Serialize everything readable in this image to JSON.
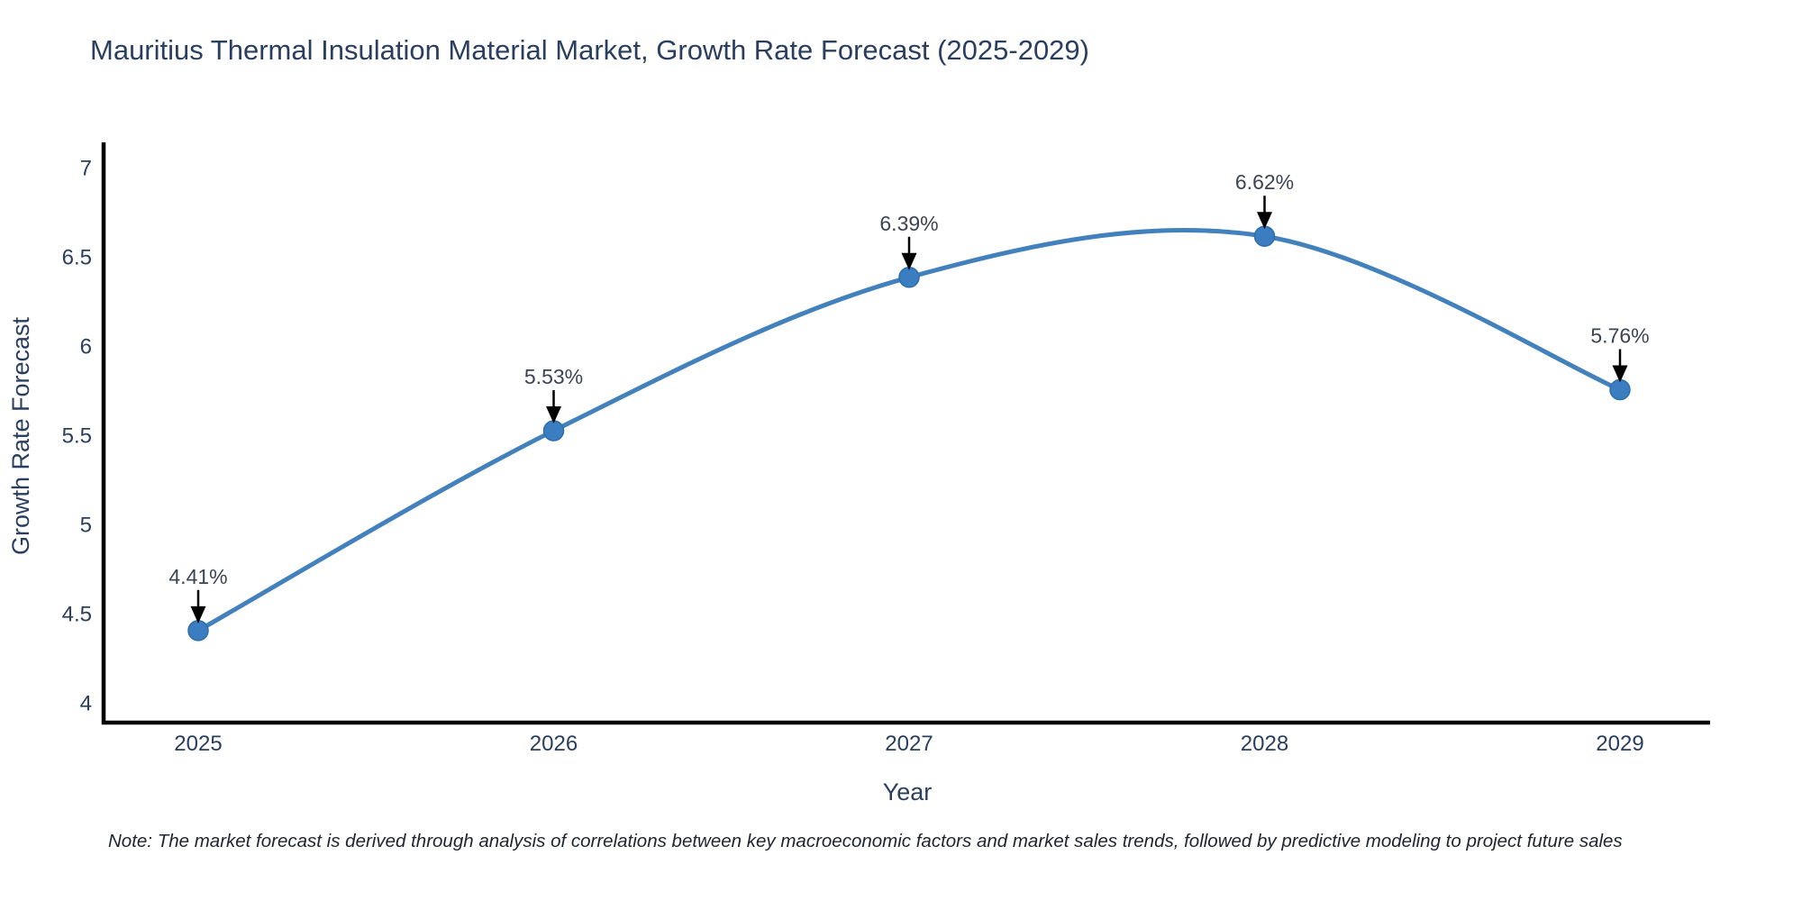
{
  "title": "Mauritius Thermal Insulation Material Market, Growth Rate Forecast (2025-2029)",
  "note": "Note: The market forecast is derived through analysis of correlations between key macroeconomic factors and market sales trends, followed by predictive modeling to project future sales",
  "chart_data": {
    "type": "line",
    "line_shape": "spline",
    "title": "Mauritius Thermal Insulation Material Market, Growth Rate Forecast (2025-2029)",
    "xlabel": "Year",
    "ylabel": "Growth Rate Forecast",
    "categories": [
      "2025",
      "2026",
      "2027",
      "2028",
      "2029"
    ],
    "series": [
      {
        "name": "Growth Rate Forecast",
        "values": [
          4.41,
          5.53,
          6.39,
          6.62,
          5.76
        ]
      }
    ],
    "point_labels": [
      "4.41%",
      "5.53%",
      "6.39%",
      "6.62%",
      "5.76%"
    ],
    "yticks": [
      "4",
      "4.5",
      "5",
      "5.5",
      "6",
      "6.5",
      "7"
    ],
    "ylim": [
      3.89,
      7.14
    ],
    "grid": false,
    "legend": false,
    "colors": {
      "line": "#4381bd",
      "marker": "#3a7ec1",
      "marker_border": "#2e6ea9",
      "axis_line": "#000000",
      "title_text": "#2a3f5f",
      "tick_text": "#2a3f5f",
      "annotation_text": "#3c4454",
      "arrow": "#000000",
      "background": "#ffffff"
    }
  }
}
